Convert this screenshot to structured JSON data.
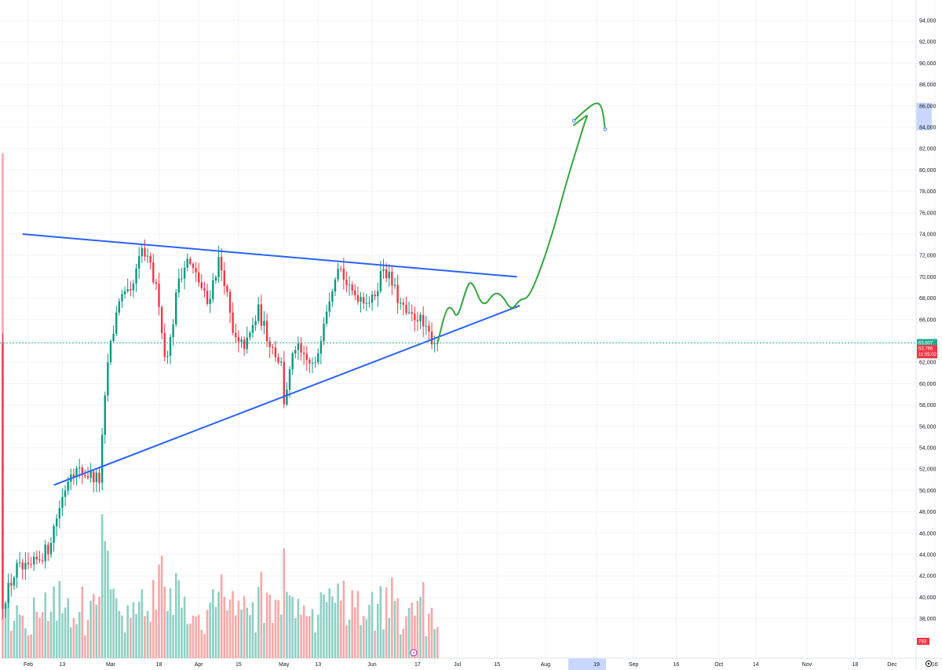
{
  "chart_data": {
    "type": "candlestick",
    "price_axis": {
      "ticks": [
        "94,000",
        "92,000",
        "90,000",
        "88,000",
        "86,000",
        "84,000",
        "82,000",
        "80,000",
        "78,000",
        "76,000",
        "74,000",
        "72,000",
        "70,000",
        "68,000",
        "66,000",
        "64,000",
        "62,000",
        "60,000",
        "58,000",
        "56,000",
        "54,000",
        "52,000",
        "50,000",
        "48,000",
        "46,000",
        "44,000",
        "42,000",
        "40,000",
        "38,000"
      ],
      "tick_values": [
        94000,
        92000,
        90000,
        88000,
        86000,
        84000,
        82000,
        80000,
        78000,
        76000,
        74000,
        72000,
        70000,
        68000,
        66000,
        64000,
        62000,
        60000,
        58000,
        56000,
        54000,
        52000,
        50000,
        48000,
        46000,
        44000,
        42000,
        40000,
        38000
      ],
      "range": [
        36100,
        96100
      ],
      "highlight_range": [
        84000,
        86000
      ]
    },
    "time_axis": {
      "labels": [
        "Feb",
        "13",
        "Mar",
        "18",
        "Apr",
        "15",
        "May",
        "13",
        "Jun",
        "17",
        "Jul",
        "15",
        "Aug",
        "19",
        "Sep",
        "16",
        "Oct",
        "14",
        "Nov",
        "18",
        "Dec",
        "16"
      ],
      "dates": [
        "2024-02-01",
        "2024-02-13",
        "2024-03-01",
        "2024-03-18",
        "2024-04-01",
        "2024-04-15",
        "2024-05-01",
        "2024-05-13",
        "2024-06-01",
        "2024-06-17",
        "2024-07-01",
        "2024-07-15",
        "2024-08-01",
        "2024-08-19",
        "2024-09-01",
        "2024-09-16",
        "2024-10-01",
        "2024-10-14",
        "2024-11-01",
        "2024-11-18",
        "2024-12-01",
        "2024-12-16"
      ],
      "highlight_date": "2024-08-19"
    },
    "ohlc_keypoints": [
      [
        "2024-01-23",
        39500
      ],
      [
        "2024-01-28",
        42700
      ],
      [
        "2024-02-01",
        42500
      ],
      [
        "2024-02-08",
        44600
      ],
      [
        "2024-02-12",
        48500
      ],
      [
        "2024-02-16",
        52000
      ],
      [
        "2024-02-22",
        51500
      ],
      [
        "2024-02-26",
        51000
      ],
      [
        "2024-02-29",
        62000
      ],
      [
        "2024-03-04",
        68000
      ],
      [
        "2024-03-08",
        68200
      ],
      [
        "2024-03-12",
        72500
      ],
      [
        "2024-03-15",
        70800
      ],
      [
        "2024-03-18",
        67800
      ],
      [
        "2024-03-20",
        62500
      ],
      [
        "2024-03-22",
        64000
      ],
      [
        "2024-03-25",
        70000
      ],
      [
        "2024-03-28",
        71500
      ],
      [
        "2024-04-01",
        69600
      ],
      [
        "2024-04-04",
        67500
      ],
      [
        "2024-04-08",
        71500
      ],
      [
        "2024-04-10",
        69800
      ],
      [
        "2024-04-13",
        64500
      ],
      [
        "2024-04-15",
        63500
      ],
      [
        "2024-04-18",
        63800
      ],
      [
        "2024-04-22",
        66800
      ],
      [
        "2024-04-25",
        64500
      ],
      [
        "2024-04-30",
        61800
      ],
      [
        "2024-05-01",
        58400
      ],
      [
        "2024-05-05",
        63500
      ],
      [
        "2024-05-08",
        62200
      ],
      [
        "2024-05-12",
        61500
      ],
      [
        "2024-05-15",
        66200
      ],
      [
        "2024-05-20",
        71400
      ],
      [
        "2024-05-24",
        68600
      ],
      [
        "2024-05-28",
        68200
      ],
      [
        "2024-06-01",
        67700
      ],
      [
        "2024-06-05",
        71000
      ],
      [
        "2024-06-08",
        69300
      ],
      [
        "2024-06-11",
        67300
      ],
      [
        "2024-06-14",
        66100
      ],
      [
        "2024-06-17",
        66400
      ],
      [
        "2024-06-20",
        64800
      ],
      [
        "2024-06-24",
        63766
      ]
    ],
    "volume": {
      "unit_label": "",
      "last_value_label": "793"
    },
    "last_price": {
      "value": 63807,
      "label": "63,807",
      "color": "#22ab94"
    },
    "current_price": {
      "value": 63766,
      "label": "63,766",
      "countdown": "11:05:02",
      "color": "#f23645"
    },
    "drawings": {
      "resistance": {
        "color": "#2962ff",
        "from": [
          "2024-01-30",
          74000
        ],
        "to": [
          "2024-07-22",
          70000
        ]
      },
      "support": {
        "color": "#2962ff",
        "from": [
          "2024-02-10",
          50500
        ],
        "to": [
          "2024-07-23",
          67300
        ]
      },
      "projection": {
        "color": "#34a53b",
        "points": [
          [
            "2024-06-24",
            63766
          ],
          [
            "2024-06-27",
            67000
          ],
          [
            "2024-06-29",
            67200
          ],
          [
            "2024-07-01",
            66000
          ],
          [
            "2024-07-04",
            68800
          ],
          [
            "2024-07-06",
            69800
          ],
          [
            "2024-07-10",
            67000
          ],
          [
            "2024-07-14",
            68600
          ],
          [
            "2024-07-17",
            68200
          ],
          [
            "2024-07-20",
            66800
          ],
          [
            "2024-07-23",
            67900
          ],
          [
            "2024-07-26",
            68000
          ],
          [
            "2024-07-30",
            70500
          ],
          [
            "2024-08-04",
            74500
          ],
          [
            "2024-08-08",
            78500
          ],
          [
            "2024-08-12",
            82000
          ],
          [
            "2024-08-15",
            84600
          ],
          [
            "2024-08-16",
            85200
          ],
          [
            "2024-08-14",
            84800
          ],
          [
            "2024-08-11",
            84200
          ]
        ],
        "tail": [
          [
            "2024-08-11",
            84600
          ],
          [
            "2024-08-15",
            85600
          ],
          [
            "2024-08-19",
            86400
          ],
          [
            "2024-08-21",
            85900
          ],
          [
            "2024-08-22",
            83800
          ]
        ]
      }
    },
    "colors": {
      "up": "#089981",
      "down": "#f23645",
      "volume_up": "#8ed0c4",
      "volume_down": "#f7a8a8",
      "axis_highlight": "#c9d7ff"
    },
    "timezone_icon": "gear-icon",
    "event_icon": "lightning-icon"
  }
}
